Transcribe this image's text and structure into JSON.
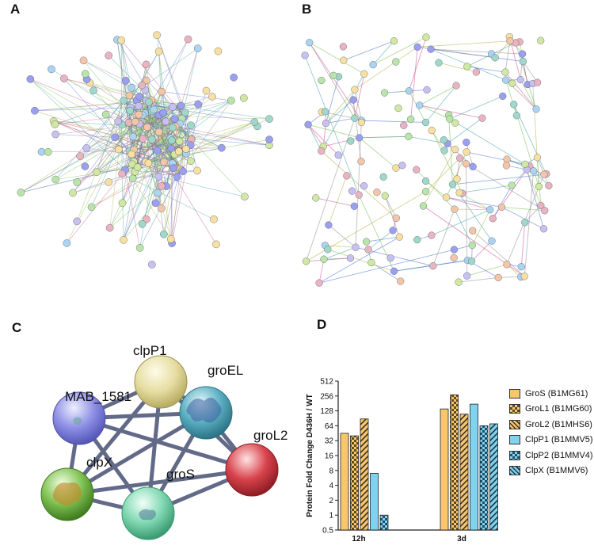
{
  "panels": {
    "a": "A",
    "b": "B",
    "c": "C",
    "d": "D"
  },
  "network_c": {
    "nodes": [
      {
        "id": "clpP1",
        "label": "clpP1",
        "color": "#e8e0a6"
      },
      {
        "id": "MAB_1581",
        "label": "MAB_1581",
        "color": "#8f8fe3"
      },
      {
        "id": "groEL",
        "label": "groEL",
        "color": "#5eb3c4"
      },
      {
        "id": "groL2",
        "label": "groL2",
        "color": "#d9474f"
      },
      {
        "id": "groS",
        "label": "groS",
        "color": "#7fd6b0"
      },
      {
        "id": "clpX",
        "label": "clpX",
        "color": "#82c257"
      }
    ],
    "edge_color": "#525a7c"
  },
  "chart_data": {
    "type": "bar",
    "categories": [
      "12h",
      "3d"
    ],
    "ylabel": "Protein Fold Change  D436H / WT",
    "yscale": "log2",
    "yticks": [
      "0.5",
      "1",
      "2",
      "4",
      "8",
      "16",
      "32",
      "64",
      "128",
      "256",
      "512"
    ],
    "ylim": [
      0.5,
      512
    ],
    "series": [
      {
        "name": "GroS (B1MG61)",
        "values": [
          45,
          140
        ],
        "color": "#f8c66f",
        "pattern": "solid"
      },
      {
        "name": "GroL1 (B1MG60)",
        "values": [
          40,
          270
        ],
        "color": "#f8c66f",
        "pattern": "checker"
      },
      {
        "name": "GroL2 (B1MHS6)",
        "values": [
          88,
          110
        ],
        "color": "#f8c66f",
        "pattern": "diagonal"
      },
      {
        "name": "ClpP1 (B1MMV5)",
        "values": [
          7,
          175
        ],
        "color": "#7fd3ef",
        "pattern": "solid"
      },
      {
        "name": "ClpP2 (B1MMV4)",
        "values": [
          1,
          64
        ],
        "color": "#7fd3ef",
        "pattern": "checker"
      },
      {
        "name": "ClpX (B1MMV6)",
        "values": [
          null,
          70
        ],
        "color": "#7fd3ef",
        "pattern": "diagonal"
      }
    ]
  }
}
